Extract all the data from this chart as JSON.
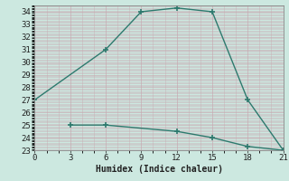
{
  "line1_x": [
    0,
    6,
    9,
    12,
    15,
    18,
    21
  ],
  "line1_y": [
    27,
    31,
    34,
    34.3,
    34,
    27,
    23
  ],
  "line2_x": [
    3,
    6,
    12,
    15,
    18,
    21
  ],
  "line2_y": [
    25,
    25,
    24.5,
    24,
    23.3,
    23
  ],
  "line_color": "#2d7a6e",
  "bg_color": "#cce8e0",
  "grid_color_major": "#c8a8b0",
  "grid_color_minor": "#c8a8b0",
  "xlabel": "Humidex (Indice chaleur)",
  "xlim": [
    0,
    21
  ],
  "ylim": [
    23,
    34.5
  ],
  "xticks": [
    0,
    3,
    6,
    9,
    12,
    15,
    18,
    21
  ],
  "yticks": [
    23,
    24,
    25,
    26,
    27,
    28,
    29,
    30,
    31,
    32,
    33,
    34
  ],
  "xlabel_fontsize": 7,
  "tick_fontsize": 6.5,
  "marker_size": 3.0,
  "lw": 1.0
}
